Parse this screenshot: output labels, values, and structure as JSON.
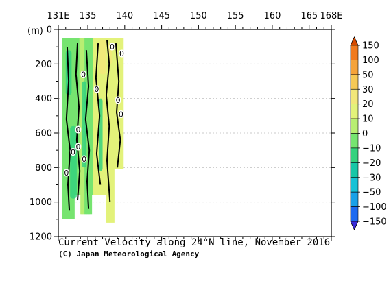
{
  "chart_data": {
    "type": "heatmap",
    "title": "Current Velocity along 24°N line, November 2016",
    "credit": "(C) Japan Meteorological Agency",
    "ylabel": "(m)",
    "x_ticks": [
      "131E",
      "135",
      "140",
      "145",
      "150",
      "155",
      "160",
      "165",
      "168E"
    ],
    "x_tick_values": [
      131,
      135,
      140,
      145,
      150,
      155,
      160,
      165,
      168
    ],
    "xlim": [
      131,
      168
    ],
    "y_ticks": [
      "0",
      "200",
      "400",
      "600",
      "800",
      "1000",
      "1200"
    ],
    "y_tick_values": [
      0,
      200,
      400,
      600,
      800,
      1000,
      1200
    ],
    "ylim": [
      0,
      1200
    ],
    "y_inverted": true,
    "grid": true,
    "contour_labels": [
      "0",
      "0",
      "0",
      "0",
      "0",
      "0",
      "0",
      "0",
      "0",
      "0",
      "0"
    ],
    "data_extent": {
      "lon": [
        131.5,
        139.8
      ],
      "depth": [
        50,
        1200
      ]
    },
    "colorbar": {
      "labels": [
        "150",
        "100",
        "50",
        "30",
        "20",
        "10",
        "0",
        "−10",
        "−20",
        "−30",
        "−50",
        "−100",
        "−150"
      ],
      "colors": [
        "#d64b00",
        "#f07a1e",
        "#f5a33a",
        "#f5c955",
        "#f2e77a",
        "#e3f27a",
        "#b8ee72",
        "#76e470",
        "#35d27e",
        "#17c7a7",
        "#18c2d6",
        "#1aa1e8",
        "#1d6af0",
        "#3a2ad8"
      ]
    }
  }
}
